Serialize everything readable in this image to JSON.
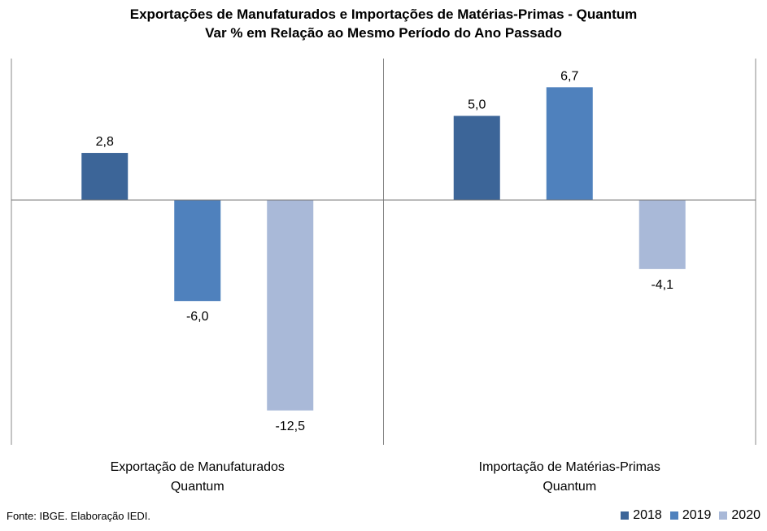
{
  "title_line1": "Exportações de Manufaturados e Importações de Matérias-Primas - Quantum",
  "title_line2": "Var % em Relação ao Mesmo Período do Ano Passado",
  "source": "Fonte: IBGE. Elaboração IEDI.",
  "chart_data": {
    "type": "bar",
    "title": "Exportações de Manufaturados e Importações de Matérias-Primas - Quantum",
    "subtitle": "Var % em Relação ao Mesmo Período do Ano Passado",
    "categories": [
      [
        "Exportação de Manufaturados",
        "Quantum"
      ],
      [
        "Importação de Matérias-Primas",
        "Quantum"
      ]
    ],
    "series": [
      {
        "name": "2018",
        "color": "#3c6598",
        "values": [
          2.8,
          5.0
        ],
        "labels": [
          "2,8",
          "5,0"
        ]
      },
      {
        "name": "2019",
        "color": "#4f81bd",
        "values": [
          -6.0,
          6.7
        ],
        "labels": [
          "-6,0",
          "6,7"
        ]
      },
      {
        "name": "2020",
        "color": "#a9b9d8",
        "values": [
          -12.5,
          -4.1
        ],
        "labels": [
          "-12,5",
          "-4,1"
        ]
      }
    ],
    "legend_position": "bottom-right",
    "grid": false
  }
}
